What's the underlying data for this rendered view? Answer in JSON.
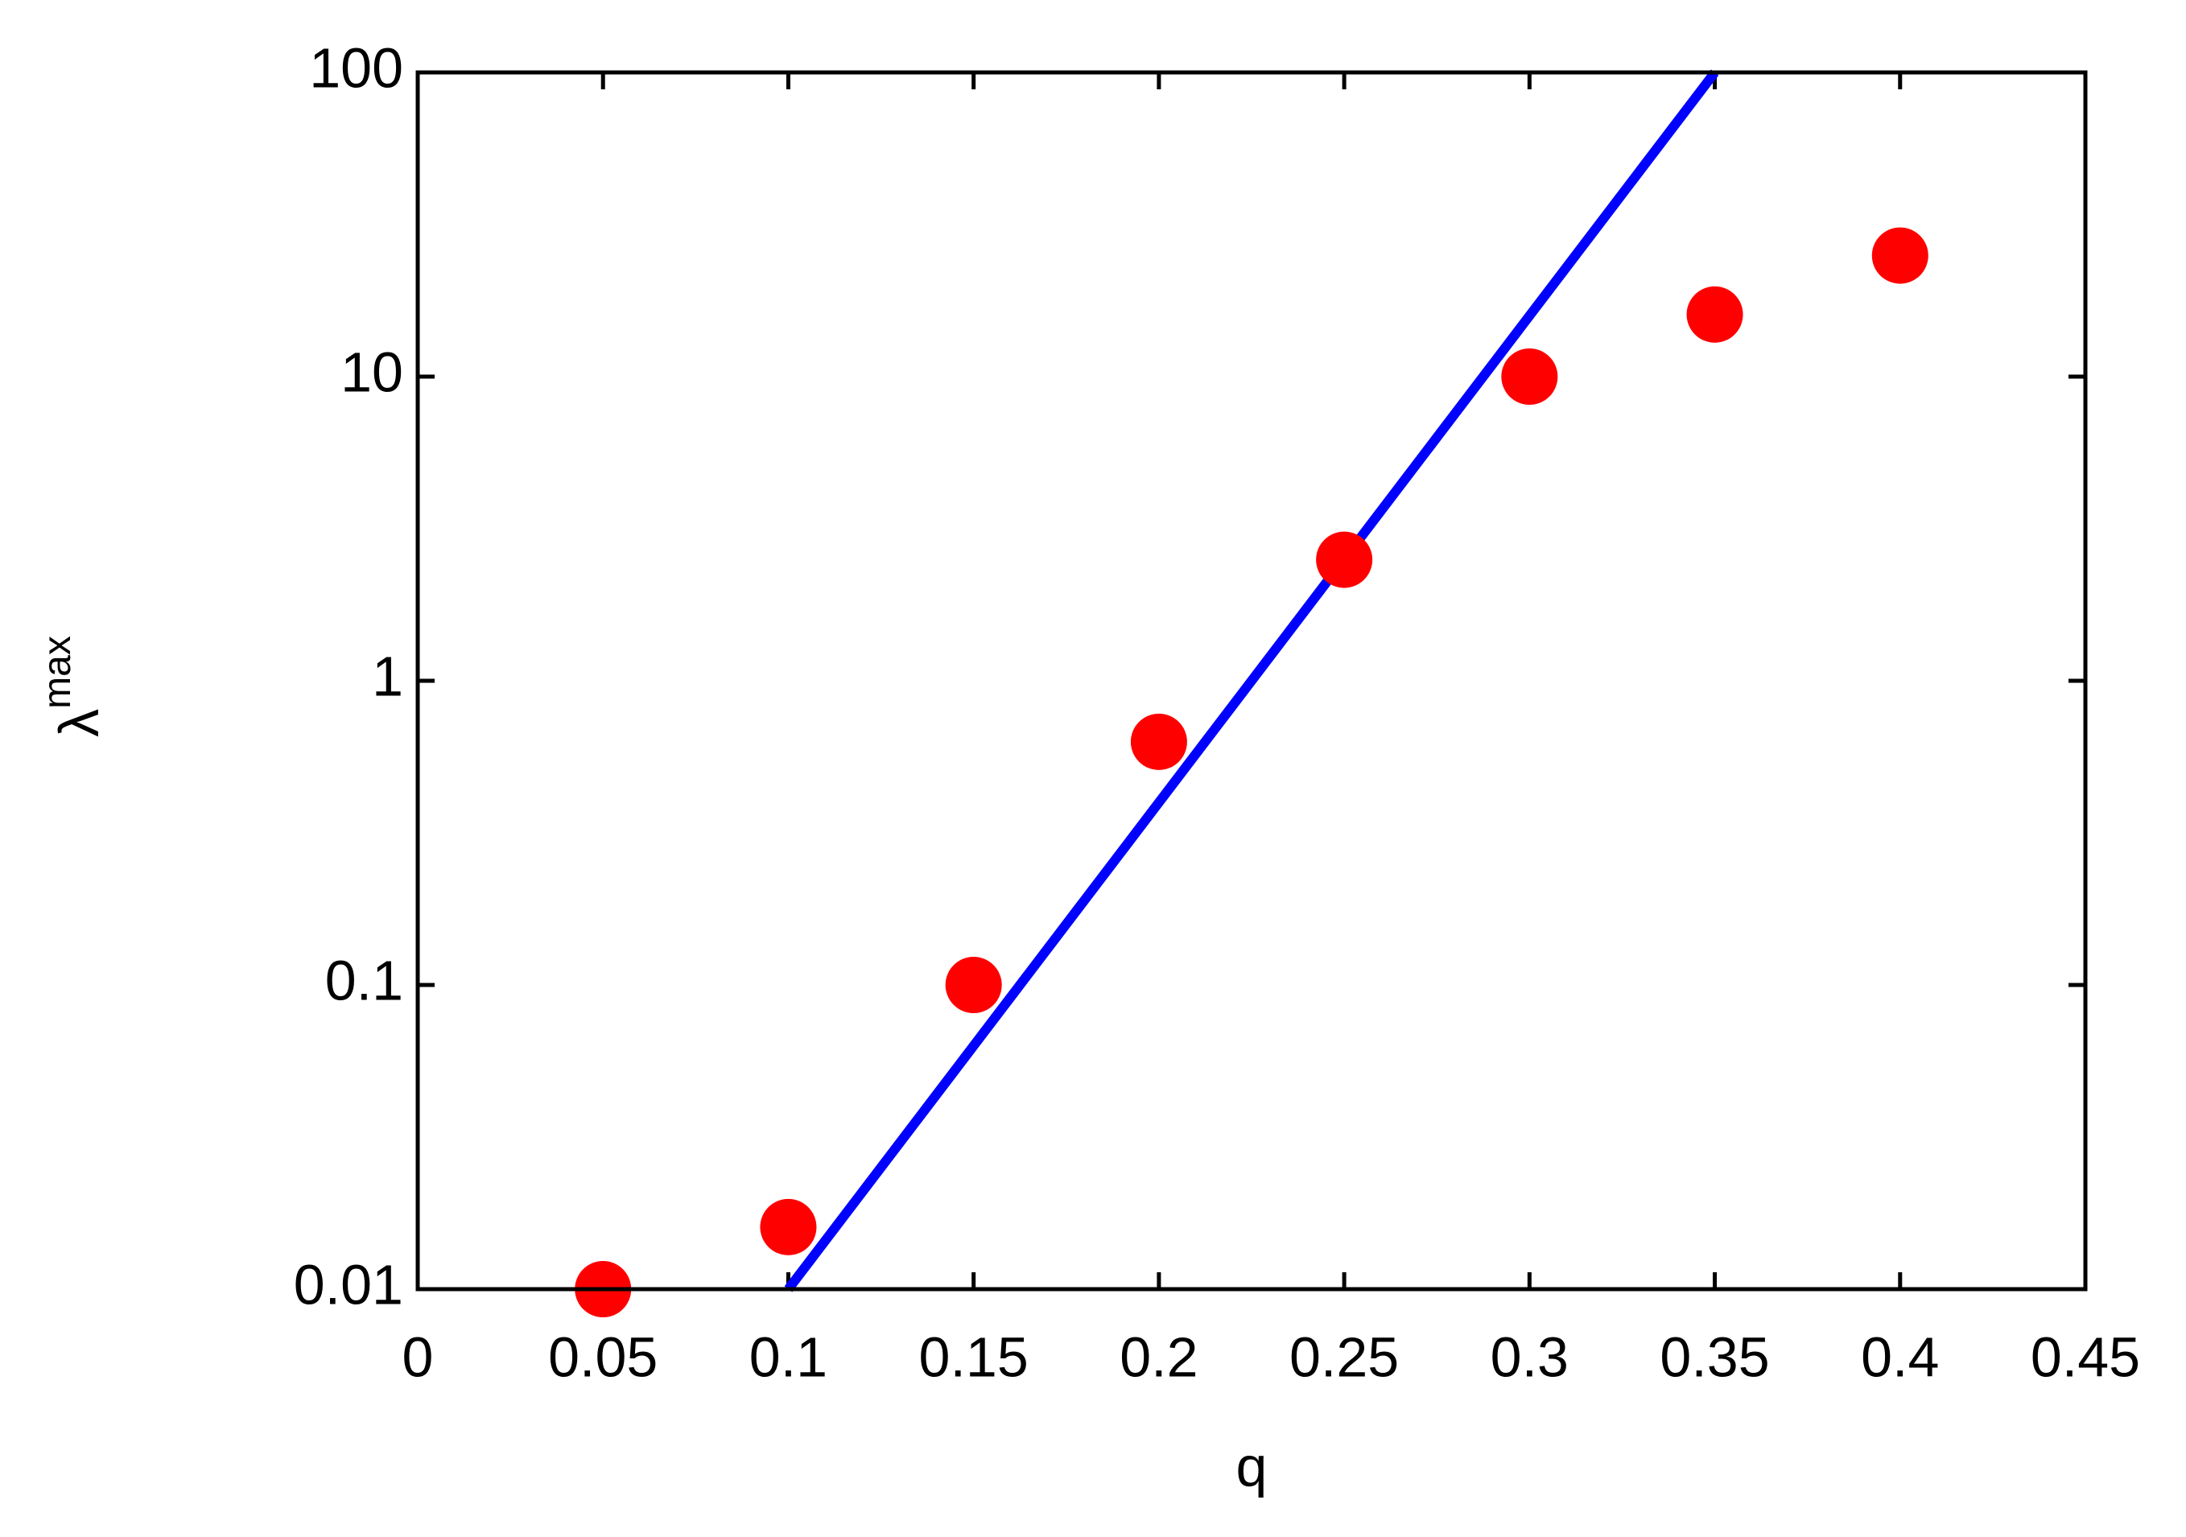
{
  "chart_data": {
    "type": "scatter",
    "xlabel": "q",
    "ylabel": {
      "text": "λ",
      "superscript": "max"
    },
    "xlim": [
      0,
      0.45
    ],
    "xticks": [
      0,
      0.05,
      0.1,
      0.15,
      0.2,
      0.25,
      0.3,
      0.35,
      0.4,
      0.45
    ],
    "ylim": [
      0.01,
      100
    ],
    "yticks": [
      0.01,
      0.1,
      1,
      10,
      100
    ],
    "ylog": true,
    "grid": false,
    "series": [
      {
        "kind": "points",
        "color": "#ff0000",
        "x": [
          0.05,
          0.1,
          0.15,
          0.2,
          0.25,
          0.3,
          0.35,
          0.4
        ],
        "values": [
          0.01,
          0.016,
          0.1,
          0.63,
          2.5,
          10,
          16,
          25
        ]
      },
      {
        "kind": "line",
        "color": "#0000ff",
        "x": [
          0.1,
          0.35
        ],
        "values": [
          0.01,
          100
        ]
      }
    ]
  }
}
